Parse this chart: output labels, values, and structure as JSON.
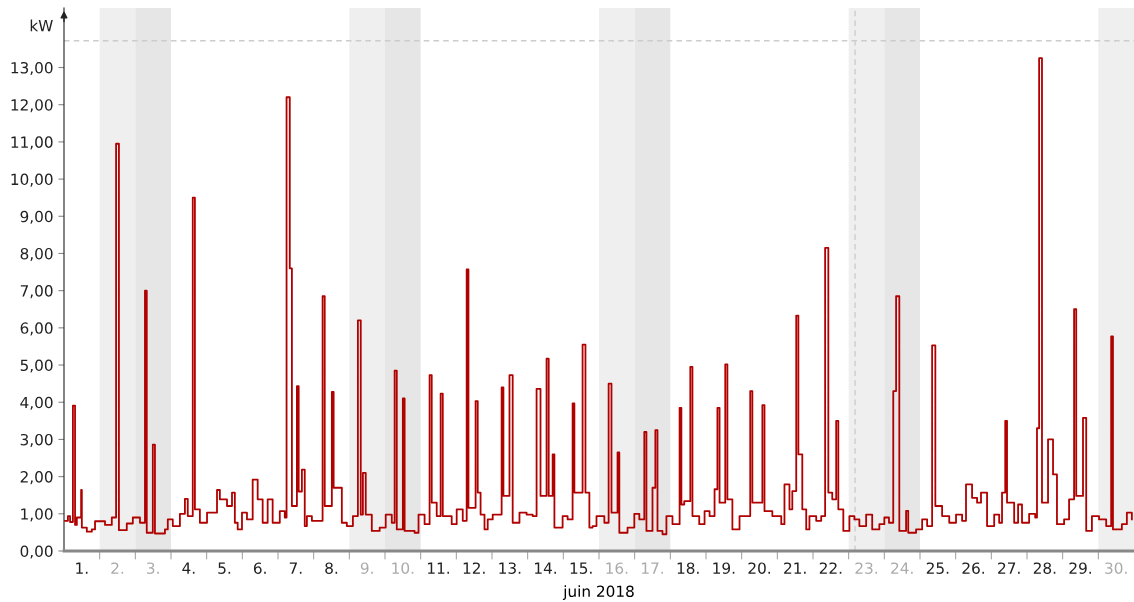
{
  "chart_data": {
    "type": "step",
    "xlabel": "juin 2018",
    "ylabel": "kW",
    "xlim": [
      1,
      31
    ],
    "ylim": [
      0,
      14.6
    ],
    "yticks": [
      {
        "value": 0,
        "label": "0,00"
      },
      {
        "value": 1,
        "label": "1,00"
      },
      {
        "value": 2,
        "label": "2,00"
      },
      {
        "value": 3,
        "label": "3,00"
      },
      {
        "value": 4,
        "label": "4,00"
      },
      {
        "value": 5,
        "label": "5,00"
      },
      {
        "value": 6,
        "label": "6,00"
      },
      {
        "value": 7,
        "label": "7,00"
      },
      {
        "value": 8,
        "label": "8,00"
      },
      {
        "value": 9,
        "label": "9,00"
      },
      {
        "value": 10,
        "label": "10,00"
      },
      {
        "value": 11,
        "label": "11,00"
      },
      {
        "value": 12,
        "label": "12,00"
      },
      {
        "value": 13,
        "label": "13,00"
      }
    ],
    "xticks": [
      {
        "value": 1.5,
        "label": "1."
      },
      {
        "value": 2.5,
        "label": "2."
      },
      {
        "value": 3.5,
        "label": "3."
      },
      {
        "value": 4.5,
        "label": "4."
      },
      {
        "value": 5.5,
        "label": "5."
      },
      {
        "value": 6.5,
        "label": "6."
      },
      {
        "value": 7.5,
        "label": "7."
      },
      {
        "value": 8.5,
        "label": "8."
      },
      {
        "value": 9.5,
        "label": "9."
      },
      {
        "value": 10.5,
        "label": "10."
      },
      {
        "value": 11.5,
        "label": "11."
      },
      {
        "value": 12.5,
        "label": "12."
      },
      {
        "value": 13.5,
        "label": "13."
      },
      {
        "value": 14.5,
        "label": "14."
      },
      {
        "value": 15.5,
        "label": "15."
      },
      {
        "value": 16.5,
        "label": "16."
      },
      {
        "value": 17.5,
        "label": "17."
      },
      {
        "value": 18.5,
        "label": "18."
      },
      {
        "value": 19.5,
        "label": "19."
      },
      {
        "value": 20.5,
        "label": "20."
      },
      {
        "value": 21.5,
        "label": "21."
      },
      {
        "value": 22.5,
        "label": "22."
      },
      {
        "value": 23.5,
        "label": "23."
      },
      {
        "value": 24.5,
        "label": "24."
      },
      {
        "value": 25.5,
        "label": "25."
      },
      {
        "value": 26.5,
        "label": "26."
      },
      {
        "value": 27.5,
        "label": "27."
      },
      {
        "value": 28.5,
        "label": "28."
      },
      {
        "value": 29.5,
        "label": "29."
      },
      {
        "value": 30.5,
        "label": "30."
      },
      {
        "value": 2,
        "label": null
      },
      {
        "value": 3,
        "label": null
      },
      {
        "value": 4,
        "label": null
      },
      {
        "value": 5,
        "label": null
      },
      {
        "value": 6,
        "label": null
      },
      {
        "value": 7,
        "label": null
      },
      {
        "value": 8,
        "label": null
      },
      {
        "value": 9,
        "label": null
      },
      {
        "value": 10,
        "label": null
      },
      {
        "value": 11,
        "label": null
      },
      {
        "value": 12,
        "label": null
      },
      {
        "value": 13,
        "label": null
      },
      {
        "value": 14,
        "label": null
      },
      {
        "value": 15,
        "label": null
      },
      {
        "value": 16,
        "label": null
      },
      {
        "value": 17,
        "label": null
      },
      {
        "value": 18,
        "label": null
      },
      {
        "value": 19,
        "label": null
      },
      {
        "value": 20,
        "label": null
      },
      {
        "value": 21,
        "label": null
      },
      {
        "value": 22,
        "label": null
      },
      {
        "value": 23,
        "label": null
      },
      {
        "value": 24,
        "label": null
      },
      {
        "value": 25,
        "label": null
      },
      {
        "value": 26,
        "label": null
      },
      {
        "value": 27,
        "label": null
      },
      {
        "value": 28,
        "label": null
      },
      {
        "value": 29,
        "label": null
      },
      {
        "value": 30,
        "label": null
      }
    ],
    "grid": false,
    "legend": false,
    "marker": "none",
    "line_style": "solid",
    "bands": [
      {
        "axis": "x",
        "from": 2,
        "to": 3,
        "color": "#efefef"
      },
      {
        "axis": "x",
        "from": 3,
        "to": 4,
        "color": "#e6e6e6"
      },
      {
        "axis": "x",
        "from": 9,
        "to": 10,
        "color": "#efefef"
      },
      {
        "axis": "x",
        "from": 10,
        "to": 11,
        "color": "#e6e6e6"
      },
      {
        "axis": "x",
        "from": 16,
        "to": 17,
        "color": "#efefef"
      },
      {
        "axis": "x",
        "from": 17,
        "to": 18,
        "color": "#e6e6e6"
      },
      {
        "axis": "x",
        "from": 23,
        "to": 24,
        "color": "#efefef"
      },
      {
        "axis": "x",
        "from": 24,
        "to": 25,
        "color": "#e6e6e6"
      },
      {
        "axis": "x",
        "from": 30,
        "to": 31,
        "color": "#efefef"
      }
    ],
    "ref_lines": [
      {
        "axis": "y",
        "value": 13.72,
        "color": "#cccccc",
        "line_style": "dashed"
      },
      {
        "axis": "x",
        "value": 23.18,
        "color": "#cccccc",
        "line_style": "dashed"
      }
    ],
    "series": [
      {
        "color": "#b00000",
        "x": [
          1.03,
          1.11,
          1.17,
          1.25,
          1.31,
          1.36,
          1.48,
          1.5,
          1.64,
          1.78,
          1.87,
          2.15,
          2.34,
          2.46,
          2.54,
          2.76,
          2.93,
          3.13,
          3.27,
          3.32,
          3.49,
          3.55,
          3.83,
          3.91,
          4.05,
          4.25,
          4.39,
          4.47,
          4.61,
          4.67,
          4.81,
          5.01,
          5.29,
          5.37,
          5.57,
          5.71,
          5.79,
          5.87,
          5.99,
          6.13,
          6.29,
          6.43,
          6.57,
          6.71,
          6.85,
          7.05,
          7.19,
          7.24,
          7.33,
          7.39,
          7.53,
          7.58,
          7.67,
          7.75,
          7.81,
          7.95,
          8.25,
          8.31,
          8.51,
          8.56,
          8.79,
          8.93,
          9.1,
          9.24,
          9.32,
          9.38,
          9.46,
          9.63,
          9.85,
          10.02,
          10.19,
          10.27,
          10.33,
          10.5,
          10.55,
          10.83,
          10.94,
          11.11,
          11.25,
          11.31,
          11.45,
          11.56,
          11.62,
          11.73,
          11.87,
          12.01,
          12.18,
          12.29,
          12.34,
          12.54,
          12.6,
          12.68,
          12.79,
          12.88,
          13.02,
          13.27,
          13.32,
          13.49,
          13.58,
          13.77,
          13.97,
          14.14,
          14.25,
          14.36,
          14.53,
          14.59,
          14.7,
          14.75,
          14.98,
          15.12,
          15.26,
          15.31,
          15.54,
          15.62,
          15.73,
          15.82,
          15.93,
          16.15,
          16.27,
          16.35,
          16.52,
          16.57,
          16.8,
          16.99,
          17.13,
          17.27,
          17.33,
          17.5,
          17.58,
          17.64,
          17.78,
          17.89,
          18.06,
          18.26,
          18.31,
          18.39,
          18.56,
          18.62,
          18.81,
          18.96,
          19.1,
          19.24,
          19.32,
          19.38,
          19.54,
          19.6,
          19.74,
          19.94,
          20.24,
          20.3,
          20.58,
          20.64,
          20.86,
          21.11,
          21.2,
          21.34,
          21.42,
          21.53,
          21.59,
          21.7,
          21.81,
          21.9,
          22.09,
          22.23,
          22.34,
          22.43,
          22.54,
          22.65,
          22.71,
          22.85,
          23.02,
          23.16,
          23.3,
          23.49,
          23.66,
          23.86,
          24.0,
          24.13,
          24.25,
          24.33,
          24.42,
          24.61,
          24.67,
          24.89,
          25.06,
          25.2,
          25.34,
          25.43,
          25.62,
          25.82,
          26.01,
          26.18,
          26.29,
          26.46,
          26.6,
          26.71,
          26.88,
          27.08,
          27.22,
          27.3,
          27.39,
          27.44,
          27.64,
          27.75,
          27.86,
          28.06,
          28.23,
          28.28,
          28.34,
          28.42,
          28.59,
          28.73,
          28.84,
          29.04,
          29.18,
          29.32,
          29.38,
          29.57,
          29.66,
          29.82,
          30.02,
          30.22,
          30.36,
          30.41,
          30.66,
          30.8,
          30.94
        ],
        "values": [
          0.81,
          0.94,
          0.78,
          3.91,
          0.7,
          0.9,
          1.64,
          0.63,
          0.52,
          0.58,
          0.8,
          0.7,
          0.9,
          10.95,
          0.56,
          0.74,
          0.9,
          0.76,
          7.0,
          0.49,
          2.86,
          0.47,
          0.58,
          0.85,
          0.67,
          1.0,
          1.4,
          0.94,
          9.5,
          1.12,
          0.76,
          1.03,
          1.64,
          1.39,
          1.21,
          1.57,
          0.76,
          0.58,
          1.03,
          0.85,
          1.92,
          1.39,
          0.76,
          1.39,
          0.76,
          1.07,
          0.9,
          12.2,
          7.6,
          1.21,
          4.43,
          1.6,
          2.19,
          0.67,
          0.94,
          0.81,
          6.85,
          1.21,
          4.28,
          1.7,
          0.76,
          0.67,
          0.94,
          6.2,
          0.98,
          2.1,
          0.98,
          0.54,
          0.63,
          0.98,
          0.76,
          4.85,
          0.58,
          4.1,
          0.54,
          0.49,
          0.98,
          0.72,
          4.73,
          1.3,
          0.94,
          4.23,
          0.94,
          0.94,
          0.72,
          1.12,
          0.81,
          7.57,
          1.16,
          4.03,
          1.57,
          0.98,
          0.58,
          0.85,
          0.98,
          4.4,
          1.48,
          4.73,
          0.76,
          1.03,
          0.98,
          0.94,
          4.36,
          1.48,
          5.17,
          1.48,
          2.6,
          0.63,
          0.94,
          0.85,
          3.97,
          1.57,
          5.55,
          1.57,
          0.63,
          0.67,
          0.94,
          0.76,
          4.5,
          1.03,
          2.65,
          0.49,
          0.63,
          1.0,
          0.85,
          3.2,
          0.54,
          1.7,
          3.25,
          0.54,
          0.45,
          0.94,
          0.72,
          3.85,
          1.25,
          1.34,
          4.95,
          0.94,
          0.72,
          1.07,
          0.94,
          1.66,
          3.85,
          1.3,
          5.02,
          1.39,
          0.58,
          0.94,
          4.3,
          1.3,
          3.92,
          1.07,
          0.94,
          0.72,
          1.79,
          1.12,
          1.61,
          6.33,
          2.6,
          1.12,
          0.58,
          0.94,
          0.81,
          0.94,
          8.15,
          1.57,
          1.39,
          3.5,
          1.12,
          0.54,
          0.94,
          0.85,
          0.67,
          0.98,
          0.58,
          0.72,
          0.9,
          0.76,
          4.3,
          6.85,
          0.54,
          1.08,
          0.49,
          0.58,
          0.85,
          0.67,
          5.53,
          1.21,
          0.94,
          0.76,
          0.98,
          0.81,
          1.79,
          1.43,
          1.3,
          1.57,
          0.67,
          0.98,
          0.76,
          1.57,
          3.5,
          1.3,
          0.76,
          1.25,
          0.76,
          1.0,
          0.9,
          3.3,
          13.25,
          1.3,
          3.0,
          2.06,
          0.72,
          0.85,
          1.39,
          6.5,
          1.48,
          3.58,
          0.54,
          0.94,
          0.85,
          0.67,
          5.77,
          0.58,
          0.72,
          1.03,
          0.85
        ]
      }
    ]
  }
}
